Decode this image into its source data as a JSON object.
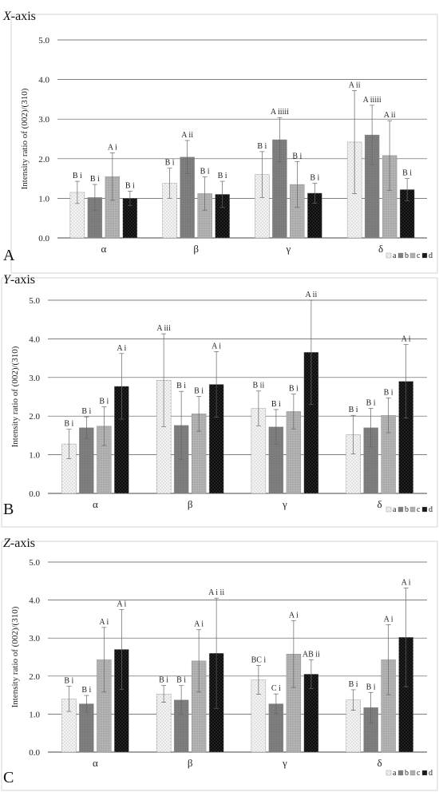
{
  "chart_data": [
    {
      "type": "bar",
      "title": "X-axis",
      "panel_label": "A",
      "ylabel": "Intensity ratio of (002)/(310)",
      "ylim": [
        0,
        5
      ],
      "yticks": [
        "0.0",
        "1.0",
        "2.0",
        "3.0",
        "4.0",
        "5.0"
      ],
      "categories": [
        "α",
        "β",
        "γ",
        "δ"
      ],
      "series": [
        {
          "name": "a",
          "values": [
            1.15,
            1.38,
            1.6,
            2.42
          ],
          "errors": [
            0.28,
            0.38,
            0.58,
            1.3
          ],
          "labels": [
            "B i",
            "B i",
            "B i",
            "A ii"
          ]
        },
        {
          "name": "b",
          "values": [
            1.02,
            2.04,
            2.48,
            2.6
          ],
          "errors": [
            0.33,
            0.42,
            0.56,
            0.75
          ],
          "labels": [
            "B i",
            "A ii",
            "A iiiii",
            "A iiiii"
          ]
        },
        {
          "name": "c",
          "values": [
            1.55,
            1.12,
            1.35,
            2.08
          ],
          "errors": [
            0.6,
            0.42,
            0.58,
            0.88
          ],
          "labels": [
            "A i",
            "B i",
            "B i",
            "A ii"
          ]
        },
        {
          "name": "d",
          "values": [
            1.0,
            1.1,
            1.13,
            1.22
          ],
          "errors": [
            0.18,
            0.33,
            0.25,
            0.28
          ],
          "labels": [
            "B i",
            "B i",
            "B i",
            "B i"
          ]
        }
      ]
    },
    {
      "type": "bar",
      "title": "Y-axis",
      "panel_label": "B",
      "ylabel": "Intensity ratio of (002)/(310)",
      "ylim": [
        0,
        5
      ],
      "yticks": [
        "0.0",
        "1.0",
        "2.0",
        "3.0",
        "4.0",
        "5.0"
      ],
      "categories": [
        "α",
        "β",
        "γ",
        "δ"
      ],
      "series": [
        {
          "name": "a",
          "values": [
            1.28,
            2.93,
            2.2,
            1.52
          ],
          "errors": [
            0.38,
            1.2,
            0.45,
            0.5
          ],
          "labels": [
            "B i",
            "A iii",
            "B ii",
            "B i"
          ]
        },
        {
          "name": "b",
          "values": [
            1.7,
            1.76,
            1.72,
            1.7
          ],
          "errors": [
            0.28,
            0.88,
            0.45,
            0.5
          ],
          "labels": [
            "B i",
            "B i",
            "B i",
            "B i"
          ]
        },
        {
          "name": "c",
          "values": [
            1.74,
            2.06,
            2.12,
            2.02
          ],
          "errors": [
            0.5,
            0.45,
            0.45,
            0.45
          ],
          "labels": [
            "B i",
            "B i",
            "B i",
            "B i"
          ]
        },
        {
          "name": "d",
          "values": [
            2.77,
            2.82,
            3.65,
            2.9
          ],
          "errors": [
            0.85,
            0.85,
            1.35,
            0.95
          ],
          "labels": [
            "A i",
            "A i",
            "A ii",
            "A i"
          ]
        }
      ]
    },
    {
      "type": "bar",
      "title": "Z-axis",
      "panel_label": "C",
      "ylabel": "Intensity ratio of (002)/(310)",
      "ylim": [
        0,
        5
      ],
      "yticks": [
        "0.0",
        "1.0",
        "2.0",
        "3.0",
        "4.0",
        "5.0"
      ],
      "categories": [
        "α",
        "β",
        "γ",
        "δ"
      ],
      "series": [
        {
          "name": "a",
          "values": [
            1.4,
            1.53,
            1.9,
            1.37
          ],
          "errors": [
            0.33,
            0.22,
            0.38,
            0.27
          ],
          "labels": [
            "B i",
            "B i",
            "BC i",
            "B i"
          ]
        },
        {
          "name": "b",
          "values": [
            1.27,
            1.37,
            1.27,
            1.17
          ],
          "errors": [
            0.22,
            0.38,
            0.26,
            0.4
          ],
          "labels": [
            "B i",
            "B i",
            "C i",
            "B i"
          ]
        },
        {
          "name": "c",
          "values": [
            2.43,
            2.4,
            2.58,
            2.43
          ],
          "errors": [
            0.85,
            0.82,
            0.88,
            0.92
          ],
          "labels": [
            "A i",
            "A i",
            "A i",
            "A i"
          ]
        },
        {
          "name": "d",
          "values": [
            2.7,
            2.6,
            2.05,
            3.02
          ],
          "errors": [
            1.05,
            1.45,
            0.38,
            1.3
          ],
          "labels": [
            "A i",
            "A i ii",
            "AB ii",
            "A i"
          ]
        }
      ]
    }
  ],
  "legend_items": [
    "a",
    "b",
    "c",
    "d"
  ],
  "colors": {
    "a": "#ececec",
    "b": "#808080",
    "c": "#a8a8a8",
    "d": "#111111"
  }
}
